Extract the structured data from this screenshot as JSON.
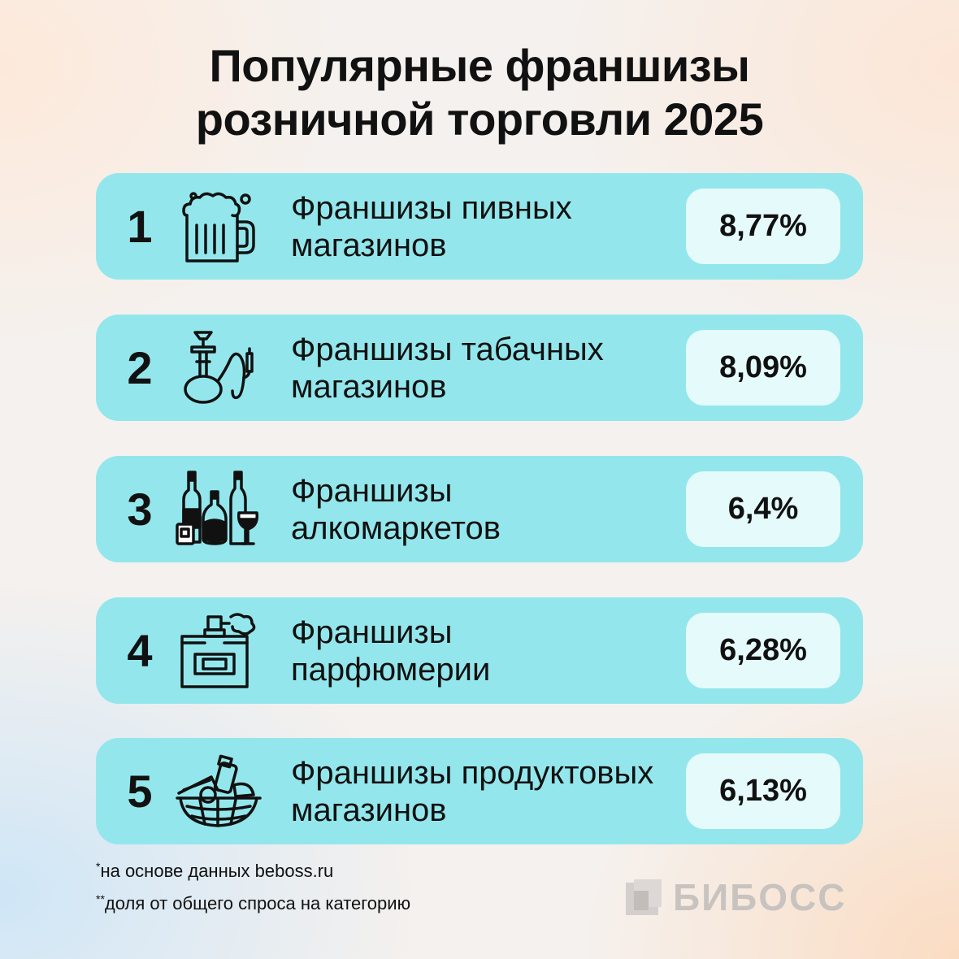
{
  "title": {
    "line1": "Популярные франшизы",
    "line2": "розничной торговли 2025"
  },
  "items": [
    {
      "rank": "1",
      "label_line1": "Франшизы пивных",
      "label_line2": "магазинов",
      "value": "8,77%",
      "icon": "beer-mug-icon"
    },
    {
      "rank": "2",
      "label_line1": "Франшизы табачных",
      "label_line2": "магазинов",
      "value": "8,09%",
      "icon": "hookah-icon"
    },
    {
      "rank": "3",
      "label_line1": "Франшизы",
      "label_line2": "алкомаркетов",
      "value": "6,4%",
      "icon": "liquor-bottles-icon"
    },
    {
      "rank": "4",
      "label_line1": "Франшизы",
      "label_line2": "парфюмерии",
      "value": "6,28%",
      "icon": "perfume-bottle-icon"
    },
    {
      "rank": "5",
      "label_line1": "Франшизы продуктовых",
      "label_line2": "магазинов",
      "value": "6,13%",
      "icon": "grocery-basket-icon"
    }
  ],
  "footnotes": {
    "note1_mark": "*",
    "note1_text": "на основе данных beboss.ru",
    "note2_mark": "**",
    "note2_text": "доля от общего спроса на категорию"
  },
  "brand": {
    "name": "БИБОСС"
  },
  "colors": {
    "row_bg": "#93e7ec",
    "value_bg": "#e5fafb",
    "text": "#111111",
    "brand": "#c9c3c0"
  }
}
